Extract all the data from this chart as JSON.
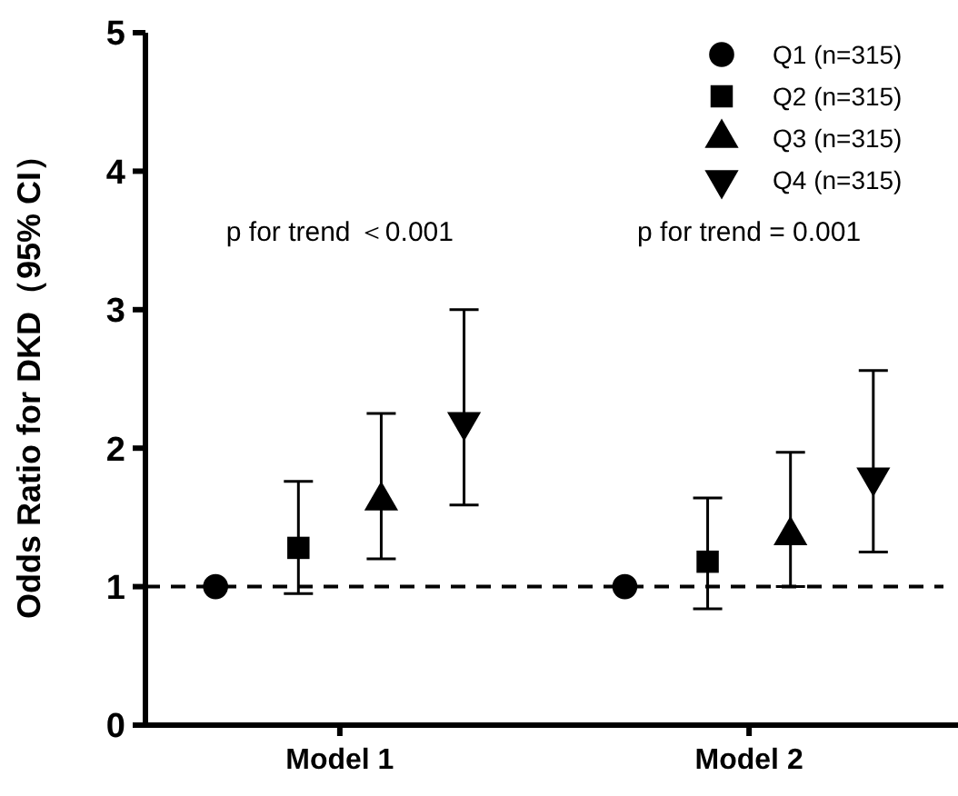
{
  "chart_data": {
    "type": "scatter",
    "ylabel": "Odds Ratio for DKD（95% CI）",
    "categories": [
      "Model 1",
      "Model 2"
    ],
    "ylim": [
      0,
      5
    ],
    "yticks": [
      0,
      1,
      2,
      3,
      4,
      5
    ],
    "grid": false,
    "legend": "top right",
    "series": [
      {
        "name": "Q1 (n=315)",
        "color": "#000000",
        "marker": "circle",
        "values": [
          1,
          1
        ]
      },
      {
        "name": "Q2 (n=315)",
        "color": "#000000",
        "marker": "square",
        "values": [
          1.28,
          1.18
        ],
        "errors": [
          [
            0.95,
            1.76
          ],
          [
            0.84,
            1.64
          ]
        ]
      },
      {
        "name": "Q3 (n=315)",
        "color": "#000000",
        "marker": "triangle",
        "values": [
          1.62,
          1.37
        ],
        "errors": [
          [
            1.2,
            2.25
          ],
          [
            1.0,
            1.97
          ]
        ]
      },
      {
        "name": "Q4 (n=315)",
        "color": "#000000",
        "marker": "triangle-down",
        "values": [
          2.19,
          1.79
        ],
        "errors": [
          [
            1.59,
            3.0
          ],
          [
            1.25,
            2.56
          ]
        ]
      }
    ],
    "ref_lines": [
      {
        "axis": "y",
        "value": 1,
        "line_style": "dashed",
        "color": "#000000"
      }
    ],
    "annotations": [
      "p for trend ＜0.001",
      "p for trend = 0.001"
    ]
  }
}
